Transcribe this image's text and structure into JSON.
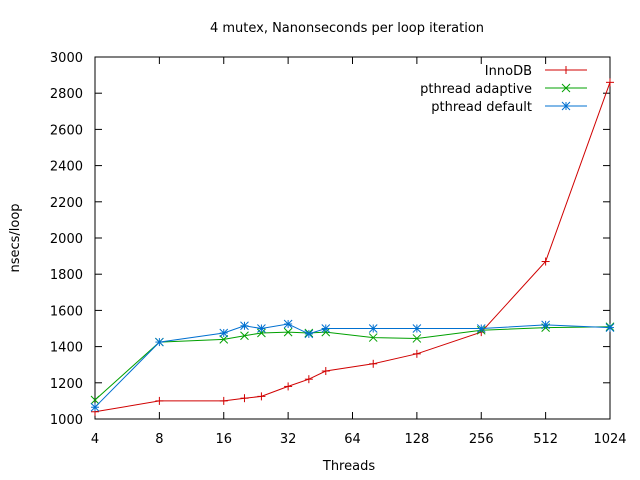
{
  "chart_data": {
    "type": "line",
    "title": "4 mutex, Nanonseconds per loop iteration",
    "xlabel": "Threads",
    "ylabel": "nsecs/loop",
    "x_scale": "log2",
    "xlim": [
      4,
      1024
    ],
    "ylim": [
      1000,
      3000
    ],
    "x_ticks": [
      "4",
      "8",
      "16",
      "32",
      "64",
      "128",
      "256",
      "512",
      "1024"
    ],
    "y_ticks": [
      "1000",
      "1200",
      "1400",
      "1600",
      "1800",
      "2000",
      "2200",
      "2400",
      "2600",
      "2800",
      "3000"
    ],
    "legend_position": "top-right",
    "grid": false,
    "series": [
      {
        "name": "InnoDB",
        "color": "#d00000",
        "marker": "plus",
        "x": [
          4,
          8,
          16,
          20,
          24,
          32,
          40,
          48,
          80,
          128,
          256,
          512,
          1024
        ],
        "y": [
          1040,
          1100,
          1100,
          1115,
          1125,
          1180,
          1220,
          1265,
          1305,
          1360,
          1480,
          1870,
          2860
        ]
      },
      {
        "name": "pthread adaptive",
        "color": "#00a000",
        "marker": "cross",
        "x": [
          4,
          8,
          16,
          20,
          24,
          32,
          40,
          48,
          80,
          128,
          256,
          512,
          1024
        ],
        "y": [
          1105,
          1425,
          1440,
          1460,
          1475,
          1480,
          1475,
          1480,
          1450,
          1445,
          1490,
          1505,
          1510
        ]
      },
      {
        "name": "pthread default",
        "color": "#0070d0",
        "marker": "star",
        "x": [
          4,
          8,
          16,
          20,
          24,
          32,
          40,
          48,
          80,
          128,
          256,
          512,
          1024
        ],
        "y": [
          1065,
          1425,
          1475,
          1515,
          1500,
          1525,
          1470,
          1500,
          1500,
          1500,
          1500,
          1520,
          1505
        ]
      }
    ]
  }
}
